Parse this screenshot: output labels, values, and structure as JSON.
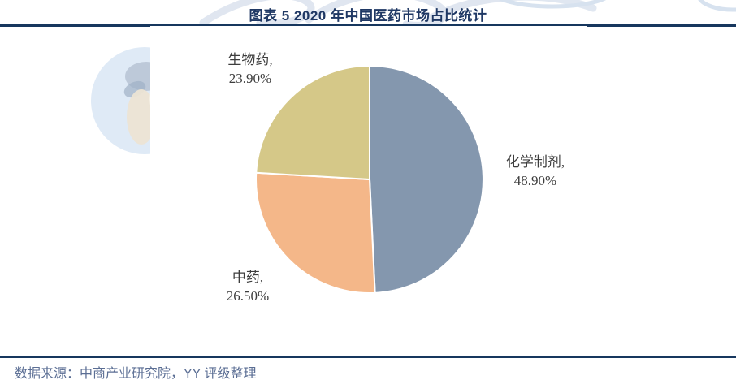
{
  "title": "图表 5 2020 年中国医药市场占比统计",
  "source_note": "数据来源：中商产业研究院，YY 评级整理",
  "colors": {
    "title_navy": "#1f3864",
    "rule_navy": "#17375e",
    "source_text": "#5b6e94",
    "label_text": "#3d3d3d",
    "slice_chemical": "#8497ae",
    "slice_tcm": "#f4b789",
    "slice_biologic": "#d5c888",
    "watermark_blue": "#dcе9f5"
  },
  "chart_data": {
    "type": "pie",
    "title": "图表 5 2020 年中国医药市场占比统计",
    "start_angle_deg": -90,
    "direction": "clockwise",
    "legend": "none",
    "data_labels": "outside",
    "slices": [
      {
        "id": "chemical",
        "label": "化学制剂",
        "value": 48.9,
        "lines": [
          "化学制剂,",
          "48.90%"
        ],
        "color": "#8497ae"
      },
      {
        "id": "tcm",
        "label": "中药",
        "value": 26.5,
        "lines": [
          "中药,",
          "26.50%"
        ],
        "color": "#f4b789"
      },
      {
        "id": "biologic",
        "label": "生物药",
        "value": 23.9,
        "lines": [
          "生物药,",
          "23.90%"
        ],
        "color": "#d5c888"
      }
    ]
  }
}
